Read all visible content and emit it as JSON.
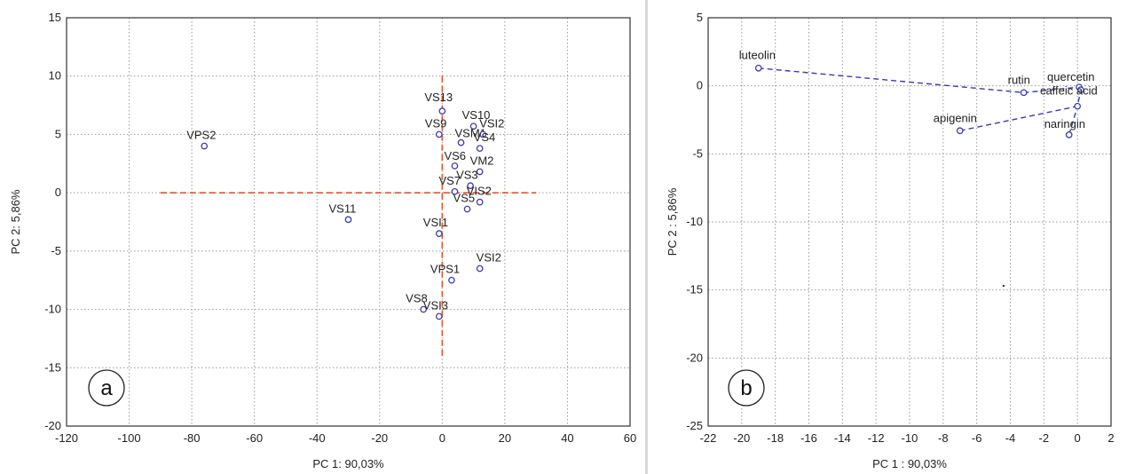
{
  "chart_data": [
    {
      "panel_label": "a",
      "type": "scatter",
      "xlabel": "PC  1: 90,03%",
      "ylabel": "PC  2: 5,86%",
      "xlim": [
        -120,
        60
      ],
      "ylim": [
        -20,
        15
      ],
      "xticks": [
        -120,
        -100,
        -80,
        -60,
        -40,
        -20,
        0,
        20,
        40,
        60
      ],
      "yticks": [
        -20,
        -15,
        -10,
        -5,
        0,
        5,
        10,
        15
      ],
      "grid": true,
      "reference_lines": {
        "horizontal_y": 0,
        "horizontal_x_range": [
          -90,
          30
        ],
        "vertical_x": 0,
        "vertical_y_range": [
          -14,
          10
        ],
        "color": "#e8542a"
      },
      "marker_color": "#3b3bb0",
      "points": [
        {
          "label": "VPS2",
          "x": -76,
          "y": 4.0
        },
        {
          "label": "VS11",
          "x": -30,
          "y": -2.3
        },
        {
          "label": "VS13",
          "x": 0,
          "y": 7.0
        },
        {
          "label": "VS9",
          "x": -1,
          "y": 5.0
        },
        {
          "label": "VSM1",
          "x": 6,
          "y": 4.3
        },
        {
          "label": "VS10",
          "x": 10,
          "y": 5.7
        },
        {
          "label": "VSI2",
          "x": 13,
          "y": 5.0
        },
        {
          "label": "VS4",
          "x": 12,
          "y": 3.8
        },
        {
          "label": "VS6",
          "x": 4,
          "y": 2.3
        },
        {
          "label": "VM2",
          "x": 12,
          "y": 1.8
        },
        {
          "label": "VS3",
          "x": 9,
          "y": 0.6
        },
        {
          "label": "VS7",
          "x": 4,
          "y": 0.1
        },
        {
          "label": "VS5",
          "x": 8,
          "y": -1.4
        },
        {
          "label": "VIS2",
          "x": 12,
          "y": -0.8
        },
        {
          "label": "VSI1",
          "x": -1,
          "y": -3.5
        },
        {
          "label": "VSI2",
          "x": 12,
          "y": -6.5
        },
        {
          "label": "VPS1",
          "x": 3,
          "y": -7.5
        },
        {
          "label": "VS8",
          "x": -6,
          "y": -10.0
        },
        {
          "label": "VSI3",
          "x": -1,
          "y": -10.6
        }
      ]
    },
    {
      "panel_label": "b",
      "type": "scatter",
      "xlabel": "PC  1 : 90,03%",
      "ylabel": "PC  2 : 5,86%",
      "xlim": [
        -22,
        2
      ],
      "ylim": [
        -25,
        5
      ],
      "xticks": [
        -22,
        -20,
        -18,
        -16,
        -14,
        -12,
        -10,
        -8,
        -6,
        -4,
        -2,
        0,
        2
      ],
      "yticks": [
        -25,
        -20,
        -15,
        -10,
        -5,
        0,
        5
      ],
      "grid": true,
      "marker_color": "#3b3bb0",
      "points": [
        {
          "label": "luteolin",
          "x": -19,
          "y": 1.3
        },
        {
          "label": "rutin",
          "x": -3.2,
          "y": -0.5
        },
        {
          "label": "quercetin",
          "x": 0.1,
          "y": -0.1
        },
        {
          "label": "caffeic acid",
          "x": 0.2,
          "y": -0.3
        },
        {
          "label": "apigenin",
          "x": -7,
          "y": -3.3
        },
        {
          "label": "naringin",
          "x": -0.5,
          "y": -3.6
        },
        {
          "label": "",
          "x": 0,
          "y": -1.5
        }
      ],
      "connections": [
        {
          "path": [
            "luteolin",
            "rutin",
            "quercetin"
          ]
        },
        {
          "path": [
            "apigenin",
            "unlabeled",
            "caffeic acid"
          ]
        },
        {
          "path": [
            "naringin",
            "unlabeled"
          ]
        }
      ]
    }
  ]
}
